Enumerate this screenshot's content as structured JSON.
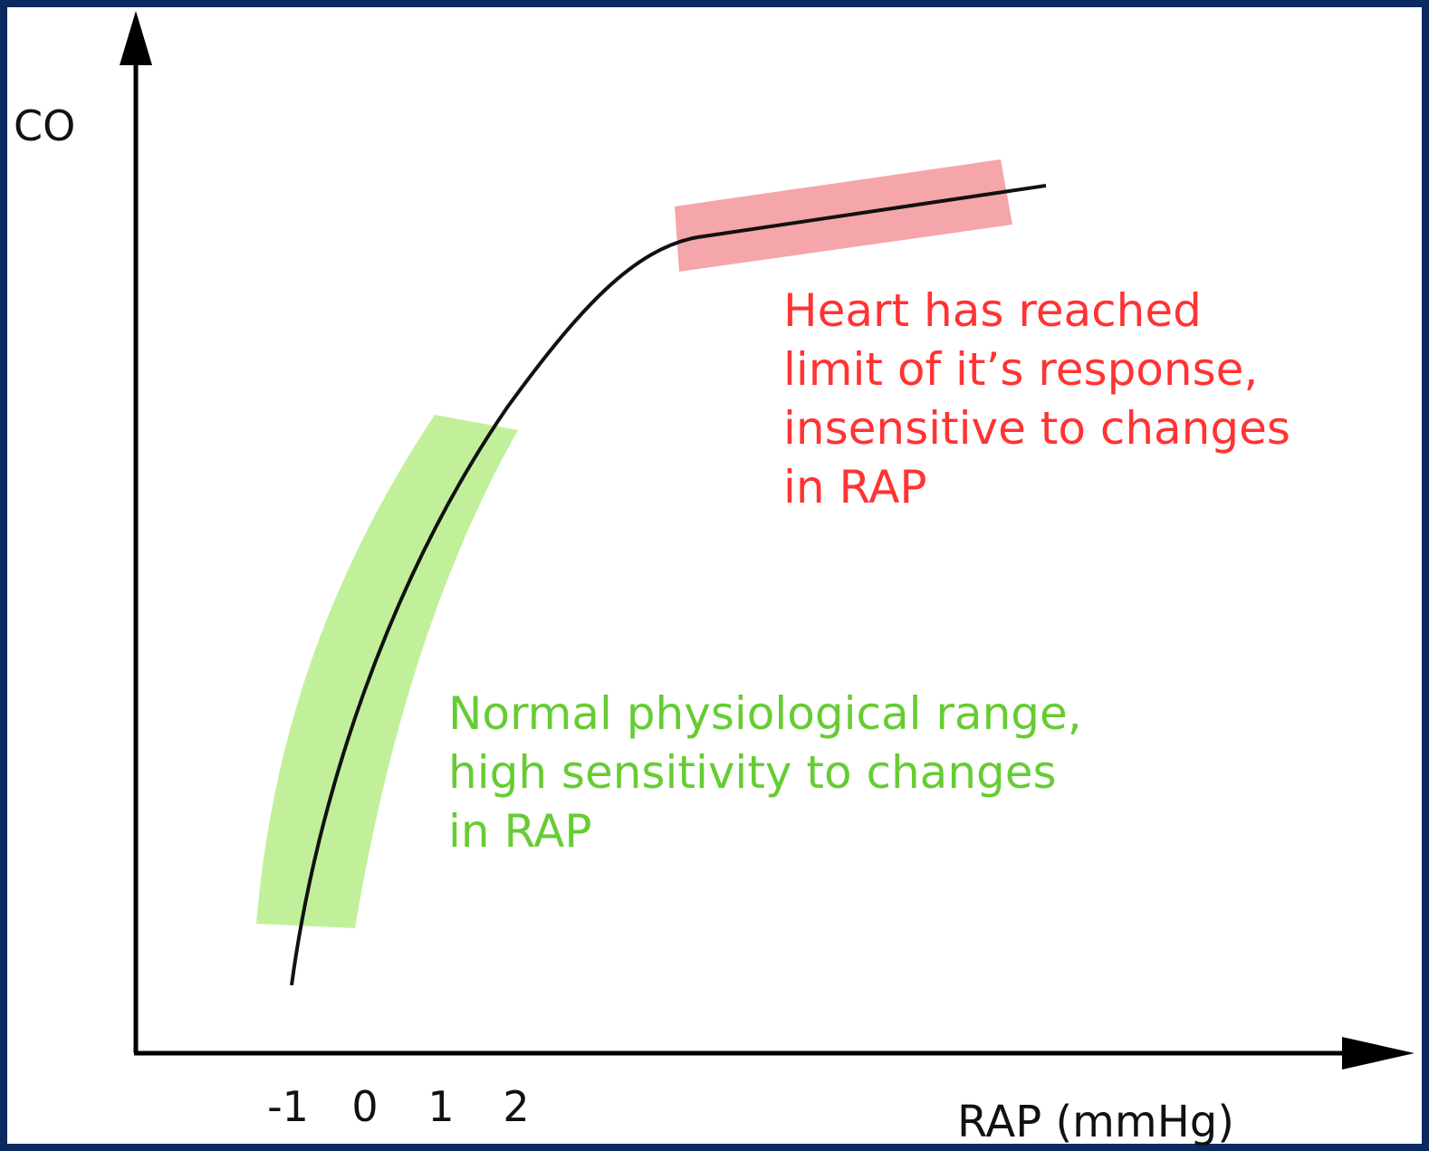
{
  "y_axis": {
    "label": "CO"
  },
  "x_axis": {
    "label": "RAP (mmHg)",
    "ticks": [
      "-1",
      "0",
      "1",
      "2"
    ]
  },
  "annotations": [
    {
      "lines": [
        "Heart has reached",
        "limit of it’s response,",
        "insensitive to changes",
        "in RAP"
      ]
    },
    {
      "lines": [
        "Normal physiological range,",
        "high sensitivity to changes",
        "in RAP"
      ]
    }
  ]
}
